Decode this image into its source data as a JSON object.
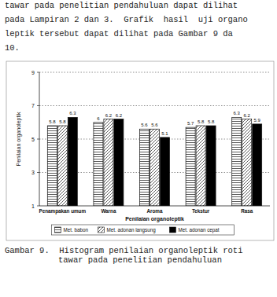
{
  "chart_data": {
    "type": "bar",
    "x_label": "Penilaian organoleptik",
    "y_label": "Penilaian organoleptik",
    "categories": [
      "Penampakan umum",
      "Warna",
      "Aroma",
      "Tekstur",
      "Rasa"
    ],
    "series": [
      {
        "name": "Met. babon",
        "color": "#ffffff",
        "values": [
          5.8,
          6,
          5.6,
          5.7,
          6.3
        ]
      },
      {
        "name": "Met. adonan langsung",
        "color": "#ffffff",
        "values": [
          5.8,
          6.2,
          5.6,
          5.8,
          6.2
        ]
      },
      {
        "name": "Met. adonan cepat",
        "color": "#000000",
        "values": [
          6.3,
          6.2,
          5.1,
          5.8,
          5.9
        ]
      }
    ],
    "ylim": [
      1,
      9
    ],
    "yticks": [
      1,
      3,
      5,
      7,
      9
    ],
    "grid": true,
    "legend": "bottom",
    "data_labels": true
  },
  "page": {
    "text_lines": [
      "tawar pada penelitian pendahuluan dapat dilihat",
      "pada Lampiran 2 dan 3.  Grafik  hasil  uji organo",
      "leptik tersebut dapat dilihat pada Gambar 9 da",
      "10."
    ],
    "caption_lines": [
      "Gambar 9.  Histogram penilaian organoleptik roti",
      "tawar pada penelitian pendahuluan"
    ]
  }
}
